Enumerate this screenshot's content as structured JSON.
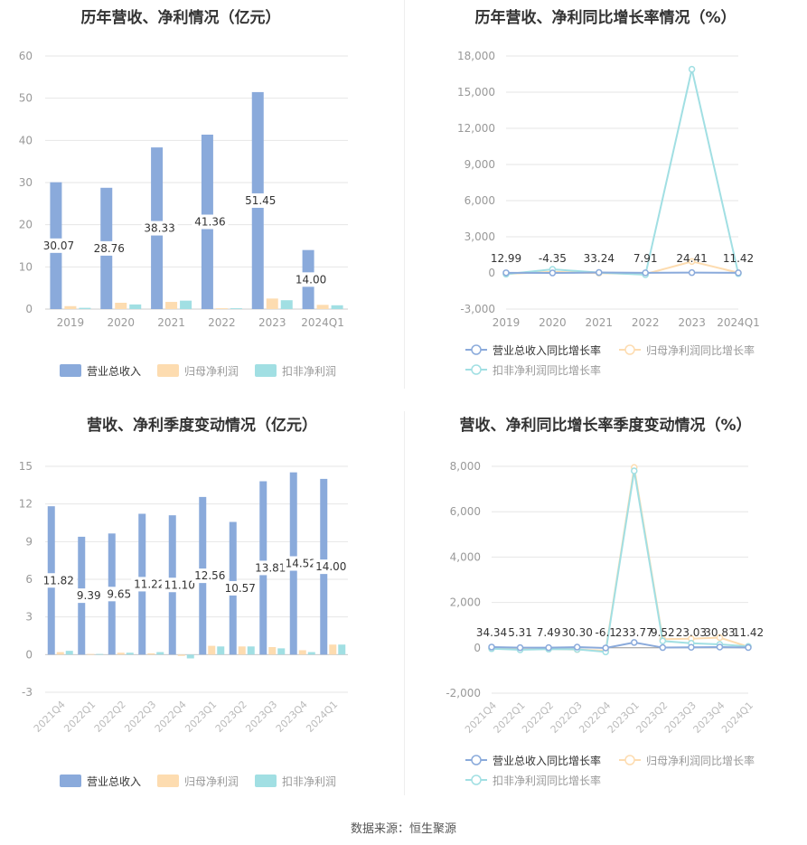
{
  "source": "数据来源：恒生聚源",
  "colors": {
    "revenue": "#8aaadb",
    "net_profit": "#fddcb0",
    "deducted_profit": "#a1dfe3",
    "grid": "#e6e6e6",
    "axis_text": "#999999"
  },
  "chart_data": [
    {
      "type": "bar",
      "title": "历年营收、净利情况（亿元）",
      "categories": [
        "2019",
        "2020",
        "2021",
        "2022",
        "2023",
        "2024Q1"
      ],
      "ylim": [
        0,
        60
      ],
      "yticks": [
        0,
        10,
        20,
        30,
        40,
        50,
        60
      ],
      "series": [
        {
          "name": "营业总收入",
          "values": [
            30.07,
            28.76,
            38.33,
            41.36,
            51.45,
            14.0
          ]
        },
        {
          "name": "归母净利润",
          "values": [
            0.7,
            1.5,
            1.7,
            0.2,
            2.5,
            1.0
          ]
        },
        {
          "name": "扣非净利润",
          "values": [
            0.3,
            1.1,
            2.0,
            0.2,
            2.1,
            0.9
          ]
        }
      ],
      "data_labels": [
        "30.07",
        "28.76",
        "38.33",
        "41.36",
        "51.45",
        "14.00"
      ],
      "legend": "bottom"
    },
    {
      "type": "line",
      "title": "历年营收、净利同比增长率情况（%）",
      "categories": [
        "2019",
        "2020",
        "2021",
        "2022",
        "2023",
        "2024Q1"
      ],
      "ylim": [
        -3000,
        18000
      ],
      "yticks": [
        -3000,
        0,
        3000,
        6000,
        9000,
        12000,
        15000,
        18000
      ],
      "ytick_labels": [
        "-3,000",
        "0",
        "3,000",
        "6,000",
        "9,000",
        "12,000",
        "15,000",
        "18,000"
      ],
      "series": [
        {
          "name": "营业总收入同比增长率",
          "values": [
            12.99,
            -4.35,
            33.24,
            7.91,
            24.41,
            11.42
          ]
        },
        {
          "name": "归母净利润同比增长率",
          "values": [
            -80,
            90,
            -20,
            -90,
            950,
            20
          ]
        },
        {
          "name": "扣非净利润同比增长率",
          "values": [
            -100,
            300,
            30,
            -150,
            16900,
            -60
          ]
        }
      ],
      "data_labels": [
        "12.99",
        "-4.35",
        "33.24",
        "7.91",
        "24.41",
        "11.42"
      ],
      "legend": "bottom"
    },
    {
      "type": "bar",
      "title": "营收、净利季度变动情况（亿元）",
      "categories": [
        "2021Q4",
        "2022Q1",
        "2022Q2",
        "2022Q3",
        "2022Q4",
        "2023Q1",
        "2023Q2",
        "2023Q3",
        "2023Q4",
        "2024Q1"
      ],
      "ylim": [
        -3,
        15
      ],
      "yticks": [
        -3,
        0,
        3,
        6,
        9,
        12,
        15
      ],
      "series": [
        {
          "name": "营业总收入",
          "values": [
            11.82,
            9.39,
            9.65,
            11.22,
            11.1,
            12.56,
            10.57,
            13.81,
            14.52,
            14.0
          ]
        },
        {
          "name": "归母净利润",
          "values": [
            0.2,
            0.05,
            0.15,
            0.1,
            -0.1,
            0.7,
            0.65,
            0.6,
            0.35,
            0.8
          ]
        },
        {
          "name": "扣非净利润",
          "values": [
            0.3,
            0.05,
            0.15,
            0.2,
            -0.3,
            0.65,
            0.65,
            0.5,
            0.2,
            0.8
          ]
        }
      ],
      "data_labels": [
        "11.82",
        "9.39",
        "9.65",
        "11.22",
        "11.10",
        "12.56",
        "10.57",
        "13.81",
        "14.52",
        "14.00"
      ],
      "legend": "bottom"
    },
    {
      "type": "line",
      "title": "营收、净利同比增长率季度变动情况（%）",
      "categories": [
        "2021Q4",
        "2022Q1",
        "2022Q2",
        "2022Q3",
        "2022Q4",
        "2023Q1",
        "2023Q2",
        "2023Q3",
        "2023Q4",
        "2024Q1"
      ],
      "ylim": [
        -2000,
        8000
      ],
      "yticks": [
        -2000,
        0,
        2000,
        4000,
        6000,
        8000
      ],
      "ytick_labels": [
        "-2,000",
        "0",
        "2,000",
        "4,000",
        "6,000",
        "8,000"
      ],
      "series": [
        {
          "name": "营业总收入同比增长率",
          "values": [
            34.34,
            5.31,
            7.49,
            30.3,
            -6.1,
            233.77,
            9.52,
            23.03,
            30.83,
            11.42
          ]
        },
        {
          "name": "归母净利润同比增长率",
          "values": [
            -30,
            -60,
            -50,
            -80,
            -120,
            7950,
            380,
            400,
            450,
            50
          ]
        },
        {
          "name": "扣非净利润同比增长率",
          "values": [
            -40,
            -90,
            -60,
            -70,
            -180,
            7800,
            300,
            200,
            150,
            60
          ]
        }
      ],
      "data_labels": [
        "34.34",
        "5.31",
        "7.49",
        "30.30",
        "-6.1",
        "233.77",
        "9.52",
        "23.03",
        "30.83",
        "11.42"
      ],
      "legend": "bottom"
    }
  ]
}
